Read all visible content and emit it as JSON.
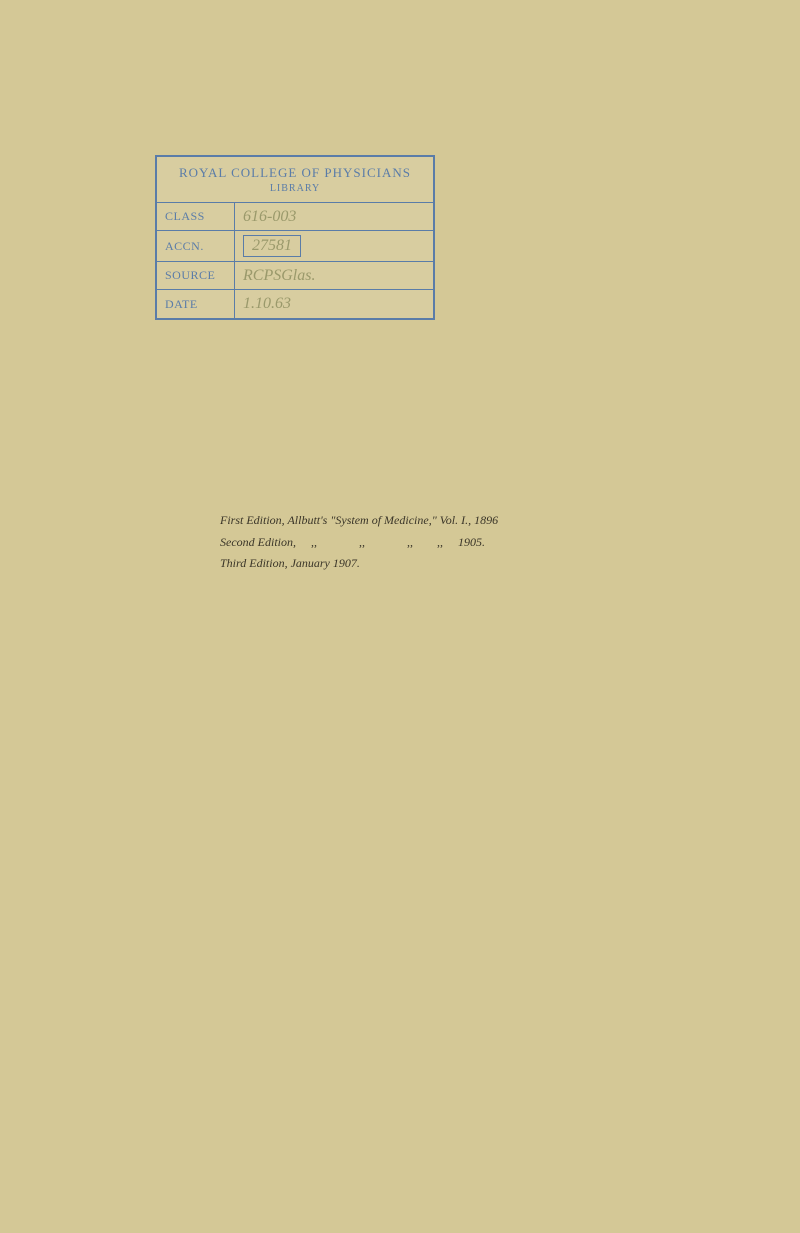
{
  "stamp": {
    "header_line1": "ROYAL COLLEGE OF PHYSICIANS",
    "header_line2": "LIBRARY",
    "rows": [
      {
        "label": "CLASS",
        "value": "616-003",
        "boxed": false
      },
      {
        "label": "ACCN.",
        "value": "27581",
        "boxed": true
      },
      {
        "label": "SOURCE",
        "value": "RCPSGlas.",
        "boxed": false
      },
      {
        "label": "DATE",
        "value": "1.10.63",
        "boxed": false
      }
    ]
  },
  "edition_lines": [
    "First Edition, Allbutt's \"System of Medicine,\" Vol. I., 1896",
    "Second Edition,     ,,              ,,              ,,        ,,     1905.",
    "Third Edition, January 1907."
  ],
  "colors": {
    "page_bg": "#d4c896",
    "stamp_ink": "#5a7ca8",
    "handwriting_ink": "#9a996b",
    "print_ink": "#3a3528"
  }
}
